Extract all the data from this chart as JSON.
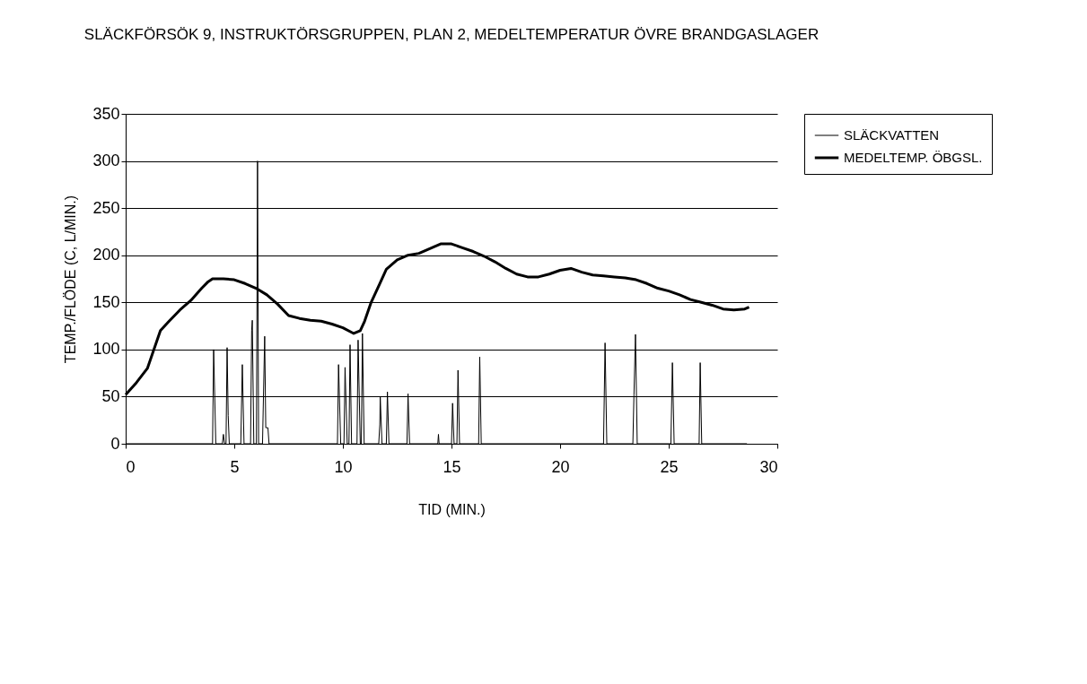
{
  "chart_data": {
    "type": "line",
    "title": "SLÄCKFÖRSÖK 9, INSTRUKTÖRSGRUPPEN, PLAN 2, MEDELTEMPERATUR ÖVRE BRANDGASLAGER",
    "xlabel": "TID (MIN.)",
    "ylabel": "TEMP./FLÖDE (C, L/MIN.)",
    "xlim": [
      0,
      30
    ],
    "xticks": [
      0,
      5,
      10,
      15,
      20,
      25,
      30
    ],
    "ylim": [
      0,
      350
    ],
    "yticks": [
      0,
      50,
      100,
      150,
      200,
      250,
      300,
      350
    ],
    "grid": "y",
    "legend": "right",
    "marker": "none",
    "line_style": "solid",
    "series": [
      {
        "name": "SLÄCKVATTEN",
        "color": "#000000",
        "x": [
          0,
          4.0,
          4.05,
          4.1,
          4.15,
          4.45,
          4.5,
          4.55,
          4.62,
          4.67,
          4.72,
          4.77,
          5.3,
          5.37,
          5.45,
          5.75,
          5.8,
          5.83,
          5.9,
          6.02,
          6.07,
          6.12,
          6.3,
          6.4,
          6.45,
          6.55,
          6.6,
          9.75,
          9.8,
          9.9,
          10.05,
          10.1,
          10.2,
          10.28,
          10.33,
          10.4,
          10.65,
          10.7,
          10.8,
          10.85,
          10.9,
          10.98,
          11.65,
          11.7,
          11.72,
          11.8,
          12.0,
          12.05,
          12.12,
          12.95,
          13.0,
          13.07,
          14.37,
          14.4,
          14.43,
          15.0,
          15.05,
          15.12,
          15.25,
          15.3,
          15.37,
          16.25,
          16.3,
          16.37,
          22.0,
          22.07,
          22.15,
          23.35,
          23.4,
          23.47,
          23.55,
          25.1,
          25.17,
          25.25,
          26.4,
          26.45,
          26.52,
          28.6
        ],
        "values": [
          0,
          0,
          100,
          50,
          0,
          0,
          10,
          0,
          0,
          102,
          30,
          0,
          0,
          84,
          0,
          0,
          120,
          131,
          0,
          0,
          300,
          0,
          0,
          114,
          17,
          17,
          0,
          0,
          84,
          0,
          0,
          81,
          0,
          0,
          105,
          0,
          0,
          110,
          0,
          0,
          117,
          0,
          0,
          20,
          50,
          0,
          0,
          55,
          0,
          0,
          53,
          0,
          0,
          10,
          0,
          0,
          43,
          0,
          0,
          78,
          0,
          0,
          92,
          0,
          0,
          107,
          0,
          0,
          52,
          116,
          0,
          0,
          86,
          0,
          0,
          86,
          0,
          0
        ]
      },
      {
        "name": "MEDELTEMP. ÖBGSL.",
        "color": "#000000",
        "x": [
          0,
          0.5,
          1,
          1.6,
          2,
          2.5,
          3,
          3.5,
          3.8,
          4,
          4.5,
          5,
          5.5,
          6,
          6.5,
          7,
          7.5,
          8,
          8.5,
          9,
          9.5,
          10,
          10.5,
          10.8,
          11,
          11.3,
          11.7,
          12,
          12.5,
          13,
          13.5,
          14,
          14.5,
          15,
          15.5,
          16,
          16.5,
          17,
          17.5,
          18,
          18.5,
          19,
          19.5,
          20,
          20.5,
          21,
          21.5,
          22,
          22.5,
          23,
          23.5,
          24,
          24.5,
          25,
          25.5,
          26,
          26.5,
          27,
          27.5,
          28,
          28.5,
          28.7
        ],
        "values": [
          52,
          65,
          80,
          120,
          130,
          142,
          152,
          165,
          172,
          175,
          175,
          174,
          170,
          165,
          158,
          148,
          136,
          133,
          131,
          130,
          127,
          123,
          117,
          120,
          130,
          150,
          170,
          185,
          195,
          200,
          202,
          207,
          212,
          212,
          208,
          204,
          199,
          193,
          186,
          180,
          177,
          177,
          180,
          184,
          186,
          182,
          179,
          178,
          177,
          176,
          174,
          170,
          165,
          162,
          158,
          153,
          150,
          147,
          143,
          142,
          143,
          145
        ]
      }
    ]
  }
}
